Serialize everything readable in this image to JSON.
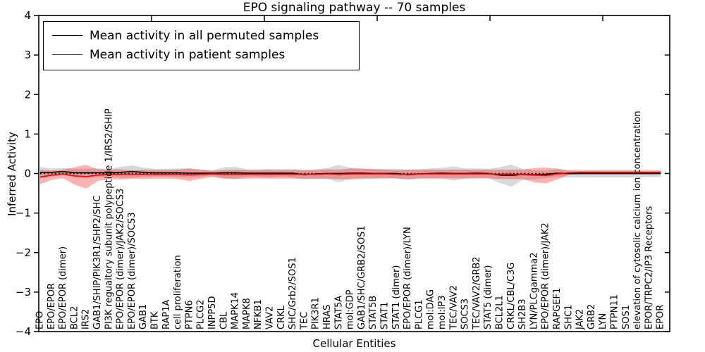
{
  "title": "EPO signaling pathway -- 70 samples",
  "legend": {
    "entries": [
      {
        "label": "Mean activity in all permuted samples",
        "color": "#000000"
      },
      {
        "label": "Mean activity in patient samples",
        "color": "#ff0000"
      }
    ]
  },
  "chart_data": {
    "type": "line",
    "title": "EPO signaling pathway -- 70 samples",
    "xlabel": "Cellular Entities",
    "ylabel": "Inferred Activity",
    "ylim": [
      -4,
      4
    ],
    "yticks": [
      4,
      3,
      2,
      1,
      0,
      -1,
      -2,
      -3,
      -4
    ],
    "ytick_labels": [
      "4",
      "3",
      "2",
      "1",
      "0",
      "−1",
      "−2",
      "−3",
      "−4"
    ],
    "grid": false,
    "legend_position": "upper left",
    "zero_line_style": "dotted",
    "x_tick_label_rotation": 90,
    "categories": [
      "EPO",
      "EPO/EPOR",
      "EPO/EPOR (dimer)",
      "BCL2",
      "IRS2",
      "GAB1/SHIP/PIK3R1/SHP2/SHC",
      "PI3K regualtory subunit polypeptide 1/IRS2/SHIP",
      "EPO/EPOR (dimer)/JAK2/SOCS3",
      "EPO/EPOR (dimer)/SOCS3",
      "GAB1",
      "BTK",
      "RAP1A",
      "cell proliferation",
      "PTPN6",
      "PLCG2",
      "INPP5D",
      "CBL",
      "MAPK14",
      "MAPK8",
      "NFKB1",
      "VAV2",
      "CRKL",
      "SHC/Grb2/SOS1",
      "TEC",
      "PIK3R1",
      "HRAS",
      "STAT5A",
      "mol:GDP",
      "GAB1/SHC/GRB2/SOS1",
      "STAT5B",
      "STAT1",
      "STAT1 (dimer)",
      "EPO/EPOR (dimer)/LYN",
      "PLCG1",
      "mol:DAG",
      "mol:IP3",
      "TEC/VAV2",
      "SOCS3",
      "TEC/VAV2/GRB2",
      "STAT5 (dimer)",
      "BCL2L1",
      "CRKL/CBL/C3G",
      "SH2B3",
      "LYN/PLCgamma2",
      "EPO/EPOR (dimer)/JAK2",
      "RAPGEF1",
      "SHC1",
      "JAK2",
      "GRB2",
      "LYN",
      "PTPN11",
      "SOS1",
      "elevation of cytosolic calcium ion concentration",
      "EPOR/TRPC2/IP3 Receptors",
      "EPOR"
    ],
    "series": [
      {
        "name": "Mean activity in all permuted samples",
        "color": "#000000",
        "band_color": "rgba(0,0,0,0.15)",
        "values": [
          0.03,
          0.03,
          0.05,
          0.02,
          0.02,
          0.02,
          0.02,
          0.03,
          0.05,
          0.03,
          0.02,
          0.02,
          0.02,
          0.01,
          0.01,
          0.01,
          0.02,
          0.02,
          0.01,
          0.01,
          0.01,
          0.01,
          0.01,
          -0.03,
          -0.01,
          0.0,
          0.0,
          0.01,
          0.01,
          0.0,
          0.0,
          0.0,
          -0.03,
          -0.01,
          0.0,
          0.01,
          0.0,
          0.0,
          0.01,
          0.0,
          -0.04,
          -0.05,
          -0.02,
          -0.03,
          -0.02,
          0.01,
          0.0,
          0.0,
          0.0,
          0.0,
          0.0,
          0.0,
          0.0,
          0.0,
          0.0
        ],
        "std": [
          0.14,
          0.1,
          0.09,
          0.1,
          0.1,
          0.11,
          0.1,
          0.14,
          0.16,
          0.12,
          0.1,
          0.1,
          0.11,
          0.12,
          0.1,
          0.07,
          0.14,
          0.15,
          0.1,
          0.1,
          0.11,
          0.1,
          0.11,
          0.12,
          0.12,
          0.14,
          0.22,
          0.14,
          0.12,
          0.12,
          0.12,
          0.12,
          0.13,
          0.12,
          0.13,
          0.14,
          0.18,
          0.13,
          0.12,
          0.12,
          0.2,
          0.28,
          0.14,
          0.12,
          0.1,
          0.1,
          0.1,
          0.1,
          0.1,
          0.1,
          0.1,
          0.1,
          0.1,
          0.09,
          0.09
        ]
      },
      {
        "name": "Mean activity in patient samples",
        "color": "#ff0000",
        "band_color": "rgba(255,0,0,0.30)",
        "values": [
          -0.09,
          -0.04,
          -0.01,
          -0.06,
          -0.08,
          -0.04,
          -0.02,
          -0.02,
          -0.02,
          -0.02,
          -0.02,
          -0.02,
          -0.02,
          -0.03,
          -0.02,
          -0.01,
          -0.02,
          -0.02,
          -0.02,
          -0.02,
          -0.02,
          -0.02,
          -0.02,
          -0.02,
          -0.02,
          -0.01,
          -0.02,
          -0.01,
          -0.01,
          -0.01,
          -0.01,
          -0.02,
          -0.02,
          -0.01,
          -0.01,
          -0.01,
          -0.01,
          -0.01,
          -0.01,
          -0.01,
          -0.02,
          -0.02,
          -0.02,
          -0.04,
          -0.05,
          -0.01,
          0.02,
          0.03,
          0.03,
          0.03,
          0.03,
          0.03,
          0.03,
          0.03,
          0.03
        ],
        "std": [
          0.18,
          0.12,
          0.11,
          0.22,
          0.3,
          0.15,
          0.12,
          0.13,
          0.11,
          0.12,
          0.11,
          0.11,
          0.12,
          0.16,
          0.11,
          0.08,
          0.11,
          0.12,
          0.11,
          0.1,
          0.11,
          0.11,
          0.11,
          0.11,
          0.11,
          0.12,
          0.12,
          0.14,
          0.13,
          0.12,
          0.11,
          0.11,
          0.12,
          0.11,
          0.11,
          0.11,
          0.11,
          0.11,
          0.11,
          0.11,
          0.12,
          0.12,
          0.12,
          0.18,
          0.2,
          0.14,
          0.05,
          0.04,
          0.04,
          0.04,
          0.04,
          0.04,
          0.04,
          0.04,
          0.04
        ]
      }
    ]
  }
}
